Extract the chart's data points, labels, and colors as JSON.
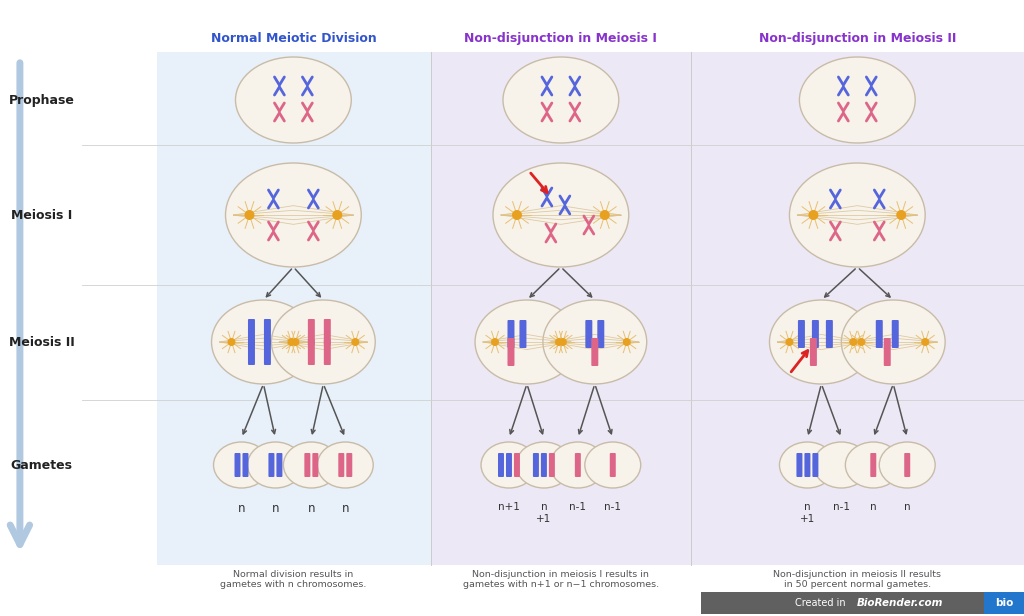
{
  "col_titles": [
    "Normal Meiotic Division",
    "Non-disjunction in Meiosis I",
    "Non-disjunction in Meiosis II"
  ],
  "col_title_colors": [
    "#3355cc",
    "#8833cc",
    "#8833cc"
  ],
  "row_labels": [
    "Prophase",
    "Meiosis I",
    "Meiosis II",
    "Gametes"
  ],
  "background_color": "#ffffff",
  "col_bg_colors": [
    "#e8f0fa",
    "#ede8f5",
    "#ede8f5"
  ],
  "footer_texts": [
    "Normal division results in\ngametes with n chromosomes.",
    "Non-disjunction in meiosis I results in\ngametes with n+1 or n−1 chromosomes.",
    "Non-disjunction in meiosis II results\nin 50 percent normal gametes."
  ],
  "blue_chr": "#5566dd",
  "pink_chr": "#dd6688",
  "orange_cent": "#e8a020",
  "cell_fill": "#f7f2ea",
  "cell_edge": "#c8bca8",
  "arrow_dark": "#444444",
  "arrow_side": "#b0c8e0",
  "red_arrow": "#dd2222"
}
